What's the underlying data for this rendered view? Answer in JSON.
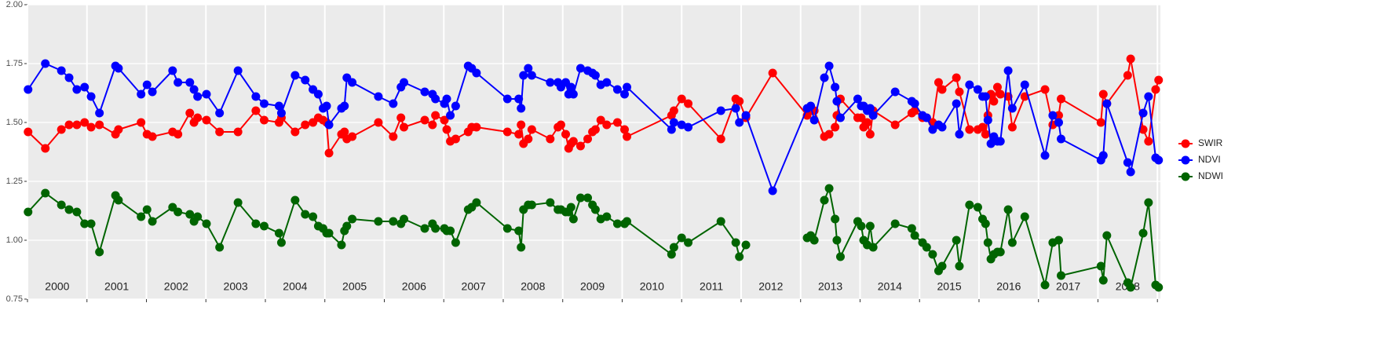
{
  "chart_data": {
    "type": "line",
    "x": [
      2000.01,
      2000.3,
      2000.57,
      2000.7,
      2000.83,
      2000.96,
      2001.07,
      2001.21,
      2001.48,
      2001.53,
      2001.91,
      2002.01,
      2002.1,
      2002.44,
      2002.53,
      2002.73,
      2002.8,
      2002.86,
      2003.01,
      2003.23,
      2003.54,
      2003.84,
      2003.98,
      2004.23,
      2004.27,
      2004.5,
      2004.67,
      2004.8,
      2004.89,
      2004.97,
      2005.03,
      2005.07,
      2005.28,
      2005.33,
      2005.37,
      2005.46,
      2005.9,
      2006.15,
      2006.28,
      2006.33,
      2006.68,
      2006.81,
      2006.86,
      2007.01,
      2007.05,
      2007.11,
      2007.2,
      2007.41,
      2007.47,
      2007.55,
      2008.07,
      2008.26,
      2008.3,
      2008.34,
      2008.42,
      2008.48,
      2008.79,
      2008.92,
      2008.97,
      2009.05,
      2009.1,
      2009.14,
      2009.18,
      2009.3,
      2009.42,
      2009.5,
      2009.55,
      2009.64,
      2009.74,
      2009.92,
      2010.04,
      2010.08,
      2010.83,
      2010.87,
      2011.0,
      2011.11,
      2011.66,
      2011.91,
      2011.97,
      2012.08,
      2012.53,
      2013.11,
      2013.17,
      2013.23,
      2013.4,
      2013.48,
      2013.58,
      2013.61,
      2013.67,
      2013.96,
      2014.02,
      2014.06,
      2014.12,
      2014.17,
      2014.22,
      2014.59,
      2014.87,
      2014.92,
      2015.05,
      2015.12,
      2015.22,
      2015.32,
      2015.38,
      2015.62,
      2015.67,
      2015.84,
      2015.98,
      2016.06,
      2016.11,
      2016.15,
      2016.2,
      2016.25,
      2016.31,
      2016.36,
      2016.49,
      2016.56,
      2016.77,
      2017.11,
      2017.24,
      2017.34,
      2017.38,
      2018.05,
      2018.09,
      2018.15,
      2018.5,
      2018.55,
      2018.76,
      2018.85,
      2018.97,
      2019.02
    ],
    "series": [
      {
        "name": "SWIR",
        "color": "#ff0000",
        "values": [
          1.46,
          1.39,
          1.47,
          1.49,
          1.49,
          1.5,
          1.48,
          1.49,
          1.45,
          1.47,
          1.5,
          1.45,
          1.44,
          1.46,
          1.45,
          1.54,
          1.5,
          1.52,
          1.51,
          1.46,
          1.46,
          1.55,
          1.51,
          1.5,
          1.52,
          1.46,
          1.49,
          1.5,
          1.52,
          1.51,
          1.5,
          1.37,
          1.45,
          1.46,
          1.43,
          1.44,
          1.5,
          1.44,
          1.52,
          1.48,
          1.51,
          1.49,
          1.53,
          1.51,
          1.47,
          1.42,
          1.43,
          1.46,
          1.48,
          1.48,
          1.46,
          1.45,
          1.49,
          1.41,
          1.43,
          1.47,
          1.43,
          1.48,
          1.49,
          1.45,
          1.39,
          1.41,
          1.42,
          1.4,
          1.43,
          1.46,
          1.47,
          1.51,
          1.49,
          1.5,
          1.47,
          1.44,
          1.53,
          1.55,
          1.6,
          1.58,
          1.43,
          1.6,
          1.59,
          1.52,
          1.71,
          1.53,
          1.55,
          1.55,
          1.44,
          1.45,
          1.48,
          1.53,
          1.6,
          1.52,
          1.52,
          1.48,
          1.5,
          1.45,
          1.55,
          1.49,
          1.54,
          1.55,
          1.52,
          1.52,
          1.5,
          1.67,
          1.64,
          1.69,
          1.63,
          1.47,
          1.47,
          1.48,
          1.45,
          1.53,
          1.62,
          1.59,
          1.65,
          1.62,
          1.61,
          1.48,
          1.61,
          1.64,
          1.49,
          1.53,
          1.6,
          1.5,
          1.62,
          1.58,
          1.7,
          1.77,
          1.47,
          1.42,
          1.64,
          1.68
        ]
      },
      {
        "name": "NDVI",
        "color": "#0000ff",
        "values": [
          1.64,
          1.75,
          1.72,
          1.69,
          1.64,
          1.65,
          1.61,
          1.54,
          1.74,
          1.73,
          1.62,
          1.66,
          1.63,
          1.72,
          1.67,
          1.67,
          1.64,
          1.61,
          1.62,
          1.54,
          1.72,
          1.61,
          1.58,
          1.57,
          1.54,
          1.7,
          1.68,
          1.64,
          1.62,
          1.56,
          1.57,
          1.49,
          1.56,
          1.57,
          1.69,
          1.67,
          1.61,
          1.58,
          1.65,
          1.67,
          1.63,
          1.62,
          1.6,
          1.58,
          1.6,
          1.53,
          1.57,
          1.74,
          1.73,
          1.71,
          1.6,
          1.6,
          1.56,
          1.7,
          1.73,
          1.7,
          1.67,
          1.67,
          1.65,
          1.67,
          1.62,
          1.65,
          1.62,
          1.73,
          1.72,
          1.71,
          1.7,
          1.66,
          1.67,
          1.64,
          1.62,
          1.65,
          1.47,
          1.5,
          1.49,
          1.48,
          1.55,
          1.56,
          1.5,
          1.53,
          1.21,
          1.56,
          1.57,
          1.51,
          1.69,
          1.74,
          1.65,
          1.59,
          1.52,
          1.6,
          1.57,
          1.57,
          1.55,
          1.56,
          1.53,
          1.63,
          1.59,
          1.58,
          1.53,
          1.52,
          1.47,
          1.49,
          1.48,
          1.58,
          1.45,
          1.66,
          1.64,
          1.61,
          1.61,
          1.51,
          1.41,
          1.44,
          1.42,
          1.42,
          1.72,
          1.56,
          1.66,
          1.36,
          1.53,
          1.5,
          1.43,
          1.34,
          1.36,
          1.58,
          1.33,
          1.29,
          1.54,
          1.61,
          1.35,
          1.34
        ]
      },
      {
        "name": "NDWI",
        "color": "#006400",
        "values": [
          1.12,
          1.2,
          1.15,
          1.13,
          1.12,
          1.07,
          1.07,
          0.95,
          1.19,
          1.17,
          1.1,
          1.13,
          1.08,
          1.14,
          1.12,
          1.11,
          1.08,
          1.1,
          1.07,
          0.97,
          1.16,
          1.07,
          1.06,
          1.03,
          0.99,
          1.17,
          1.11,
          1.1,
          1.06,
          1.05,
          1.03,
          1.03,
          0.98,
          1.04,
          1.06,
          1.09,
          1.08,
          1.08,
          1.07,
          1.09,
          1.05,
          1.07,
          1.05,
          1.05,
          1.04,
          1.04,
          0.99,
          1.13,
          1.14,
          1.16,
          1.05,
          1.04,
          0.97,
          1.13,
          1.15,
          1.15,
          1.16,
          1.13,
          1.13,
          1.12,
          1.12,
          1.14,
          1.09,
          1.18,
          1.18,
          1.15,
          1.13,
          1.09,
          1.1,
          1.07,
          1.07,
          1.08,
          0.94,
          0.97,
          1.01,
          0.99,
          1.08,
          0.99,
          0.93,
          0.98,
          null,
          1.01,
          1.02,
          1.0,
          1.17,
          1.22,
          1.09,
          1.0,
          0.93,
          1.08,
          1.06,
          1.0,
          0.98,
          1.06,
          0.97,
          1.07,
          1.05,
          1.02,
          0.99,
          0.97,
          0.94,
          0.87,
          0.89,
          1.0,
          0.89,
          1.15,
          1.14,
          1.09,
          1.07,
          0.99,
          0.92,
          0.94,
          0.95,
          0.95,
          1.13,
          0.99,
          1.1,
          0.81,
          0.99,
          1.0,
          0.85,
          0.89,
          0.83,
          1.02,
          0.82,
          0.8,
          1.03,
          1.16,
          0.81,
          0.8
        ]
      }
    ],
    "xlim": [
      2000,
      2019.05
    ],
    "xticks": [
      2000,
      2001,
      2002,
      2003,
      2004,
      2005,
      2006,
      2007,
      2008,
      2009,
      2010,
      2011,
      2012,
      2013,
      2014,
      2015,
      2016,
      2017,
      2018,
      2019
    ],
    "ylim": [
      0.75,
      2.0
    ],
    "yticks": [
      0.75,
      {
        "value": 1.0,
        "label": "1.00"
      },
      1.25,
      {
        "value": 1.5,
        "label": "1.50"
      },
      1.75,
      {
        "value": 2.0,
        "label": "2.00"
      }
    ],
    "annotations": [
      {
        "text": "2000",
        "x": 2000.5
      },
      {
        "text": "2001",
        "x": 2001.5
      },
      {
        "text": "2002",
        "x": 2002.5
      },
      {
        "text": "2003",
        "x": 2003.5
      },
      {
        "text": "2004",
        "x": 2004.5
      },
      {
        "text": "2005",
        "x": 2005.5
      },
      {
        "text": "2006",
        "x": 2006.5
      },
      {
        "text": "2007",
        "x": 2007.5
      },
      {
        "text": "2008",
        "x": 2008.5
      },
      {
        "text": "2009",
        "x": 2009.5
      },
      {
        "text": "2010",
        "x": 2010.5
      },
      {
        "text": "2011",
        "x": 2011.5
      },
      {
        "text": "2012",
        "x": 2012.5
      },
      {
        "text": "2013",
        "x": 2013.5
      },
      {
        "text": "2014",
        "x": 2014.5
      },
      {
        "text": "2015",
        "x": 2015.5
      },
      {
        "text": "2016",
        "x": 2016.5
      },
      {
        "text": "2017",
        "x": 2017.5
      },
      {
        "text": "2018",
        "x": 2018.5
      }
    ],
    "grid": true,
    "legend": "right"
  }
}
